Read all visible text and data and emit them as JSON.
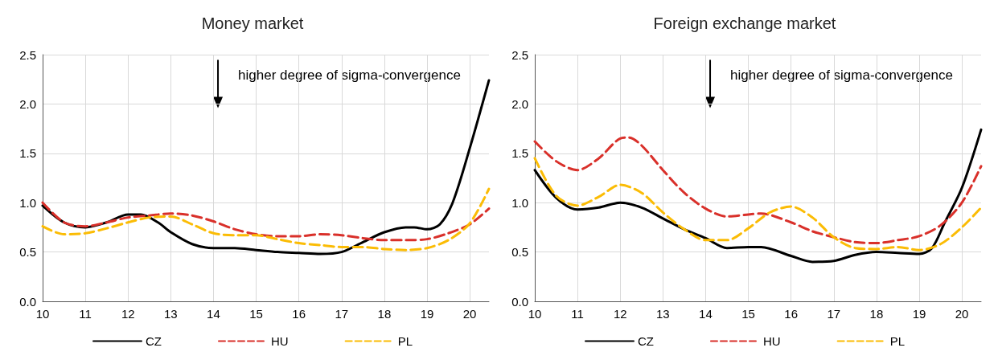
{
  "chart_data": [
    {
      "type": "line",
      "title": "Money market",
      "annotations": [
        "higher degree of sigma-convergence"
      ],
      "xlim": [
        10,
        20.45
      ],
      "xticks": [
        10,
        11,
        12,
        13,
        14,
        15,
        16,
        17,
        18,
        19,
        20
      ],
      "ylim": [
        0,
        2.5
      ],
      "yticks": [
        {
          "value": 0,
          "label": "0.0"
        },
        0.5,
        {
          "value": 1,
          "label": "1.0"
        },
        1.5,
        {
          "value": 2,
          "label": "2.0"
        },
        2.5
      ],
      "grid": true,
      "legend": "bottom",
      "series": [
        {
          "name": "CZ",
          "color": "#000000",
          "line_style": "solid",
          "x": [
            10,
            10.5,
            11,
            11.5,
            12,
            12.3,
            12.7,
            13,
            13.5,
            14,
            14.5,
            15,
            15.5,
            16,
            16.5,
            17,
            17.5,
            18,
            18.5,
            18.7,
            19,
            19.3,
            19.6,
            20,
            20.45
          ],
          "values": [
            0.97,
            0.8,
            0.75,
            0.8,
            0.88,
            0.88,
            0.8,
            0.7,
            0.58,
            0.54,
            0.54,
            0.52,
            0.5,
            0.49,
            0.48,
            0.5,
            0.6,
            0.7,
            0.75,
            0.75,
            0.73,
            0.78,
            1.0,
            1.55,
            2.24
          ]
        },
        {
          "name": "HU",
          "color": "#d9302a",
          "line_style": "dashed",
          "x": [
            10,
            10.5,
            11,
            11.5,
            12,
            12.5,
            13,
            13.5,
            14,
            14.5,
            15,
            15.5,
            16,
            16.5,
            17,
            17.5,
            18,
            18.5,
            19,
            19.5,
            20,
            20.45
          ],
          "values": [
            1.0,
            0.8,
            0.76,
            0.8,
            0.85,
            0.87,
            0.89,
            0.87,
            0.81,
            0.73,
            0.68,
            0.66,
            0.66,
            0.68,
            0.67,
            0.64,
            0.62,
            0.62,
            0.63,
            0.69,
            0.78,
            0.94
          ]
        },
        {
          "name": "PL",
          "color": "#fbbc05",
          "line_style": "dashed",
          "x": [
            10,
            10.5,
            11,
            11.5,
            12,
            12.5,
            13,
            13.5,
            14,
            14.5,
            15,
            15.5,
            16,
            16.5,
            17,
            17.5,
            18,
            18.5,
            19,
            19.5,
            20,
            20.45
          ],
          "values": [
            0.76,
            0.68,
            0.69,
            0.74,
            0.8,
            0.85,
            0.86,
            0.78,
            0.69,
            0.67,
            0.67,
            0.63,
            0.59,
            0.57,
            0.55,
            0.55,
            0.53,
            0.52,
            0.54,
            0.62,
            0.79,
            1.14
          ]
        }
      ]
    },
    {
      "type": "line",
      "title": "Foreign exchange market",
      "annotations": [
        "higher degree of sigma-convergence"
      ],
      "xlim": [
        10,
        20.45
      ],
      "xticks": [
        10,
        11,
        12,
        13,
        14,
        15,
        16,
        17,
        18,
        19,
        20
      ],
      "ylim": [
        0,
        2.5
      ],
      "yticks": [
        {
          "value": 0,
          "label": "0.0"
        },
        0.5,
        {
          "value": 1,
          "label": "1.0"
        },
        1.5,
        {
          "value": 2,
          "label": "2.0"
        },
        2.5
      ],
      "grid": true,
      "legend": "bottom",
      "series": [
        {
          "name": "CZ",
          "color": "#000000",
          "line_style": "solid",
          "x": [
            10,
            10.5,
            11,
            11.5,
            12,
            12.5,
            13,
            13.5,
            14,
            14.5,
            15,
            15.3,
            16,
            16.5,
            17,
            17.5,
            18,
            18.5,
            19,
            19.3,
            19.6,
            20,
            20.45
          ],
          "values": [
            1.33,
            1.05,
            0.93,
            0.95,
            1.0,
            0.95,
            0.84,
            0.73,
            0.64,
            0.54,
            0.55,
            0.55,
            0.46,
            0.4,
            0.41,
            0.47,
            0.5,
            0.49,
            0.48,
            0.54,
            0.8,
            1.15,
            1.74
          ]
        },
        {
          "name": "HU",
          "color": "#d9302a",
          "line_style": "dashed",
          "x": [
            10,
            10.5,
            11,
            11.5,
            12,
            12.2,
            12.5,
            13,
            13.5,
            14,
            14.5,
            15,
            15.3,
            16,
            16.5,
            17,
            17.5,
            18,
            18.5,
            19,
            19.5,
            20,
            20.45
          ],
          "values": [
            1.62,
            1.42,
            1.33,
            1.45,
            1.65,
            1.66,
            1.58,
            1.33,
            1.1,
            0.94,
            0.86,
            0.88,
            0.89,
            0.8,
            0.71,
            0.65,
            0.6,
            0.59,
            0.62,
            0.66,
            0.77,
            1.0,
            1.37
          ]
        },
        {
          "name": "PL",
          "color": "#fbbc05",
          "line_style": "dashed",
          "x": [
            10,
            10.5,
            11,
            11.5,
            12,
            12.5,
            13,
            13.5,
            14,
            14.5,
            15,
            15.5,
            16,
            16.5,
            17,
            17.5,
            18,
            18.5,
            19,
            19.5,
            20,
            20.45
          ],
          "values": [
            1.45,
            1.07,
            0.97,
            1.06,
            1.18,
            1.1,
            0.9,
            0.73,
            0.62,
            0.62,
            0.74,
            0.9,
            0.96,
            0.85,
            0.65,
            0.54,
            0.53,
            0.55,
            0.52,
            0.58,
            0.75,
            0.95
          ]
        }
      ]
    }
  ]
}
